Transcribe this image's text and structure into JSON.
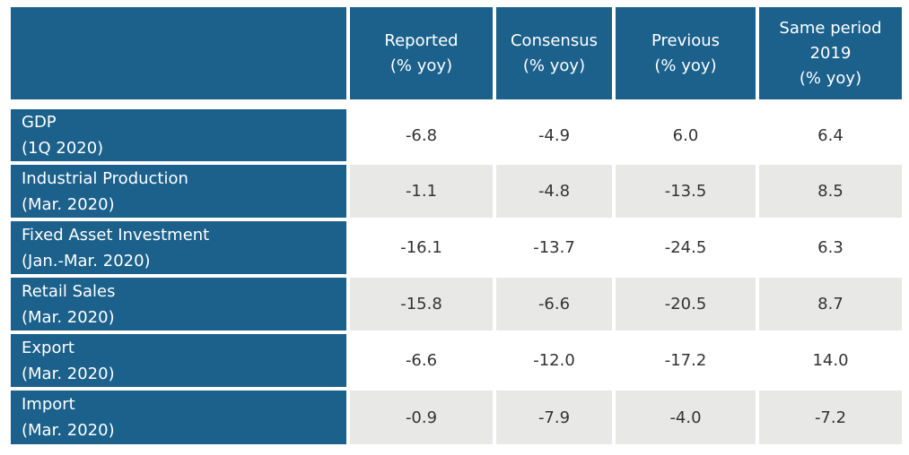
{
  "table": {
    "columns": [
      [
        "Reported",
        "(% yoy)"
      ],
      [
        "Consensus",
        "(% yoy)"
      ],
      [
        "Previous",
        "(% yoy)"
      ],
      [
        "Same period",
        "2019",
        "(% yoy)"
      ]
    ],
    "rows": [
      {
        "label": [
          "GDP",
          "(1Q 2020)"
        ],
        "cells": [
          "-6.8",
          "-4.9",
          "6.0",
          "6.4"
        ]
      },
      {
        "label": [
          "Industrial Production",
          "(Mar. 2020)"
        ],
        "cells": [
          "-1.1",
          "-4.8",
          "-13.5",
          "8.5"
        ]
      },
      {
        "label": [
          "Fixed Asset Investment",
          "(Jan.-Mar. 2020)"
        ],
        "cells": [
          "-16.1",
          "-13.7",
          "-24.5",
          "6.3"
        ]
      },
      {
        "label": [
          "Retail Sales",
          "(Mar. 2020)"
        ],
        "cells": [
          "-15.8",
          "-6.6",
          "-20.5",
          "8.7"
        ]
      },
      {
        "label": [
          "Export",
          "(Mar. 2020)"
        ],
        "cells": [
          "-6.6",
          "-12.0",
          "-17.2",
          "14.0"
        ]
      },
      {
        "label": [
          "Import",
          "(Mar. 2020)"
        ],
        "cells": [
          "-0.9",
          "-7.9",
          "-4.0",
          "-7.2"
        ]
      }
    ]
  }
}
